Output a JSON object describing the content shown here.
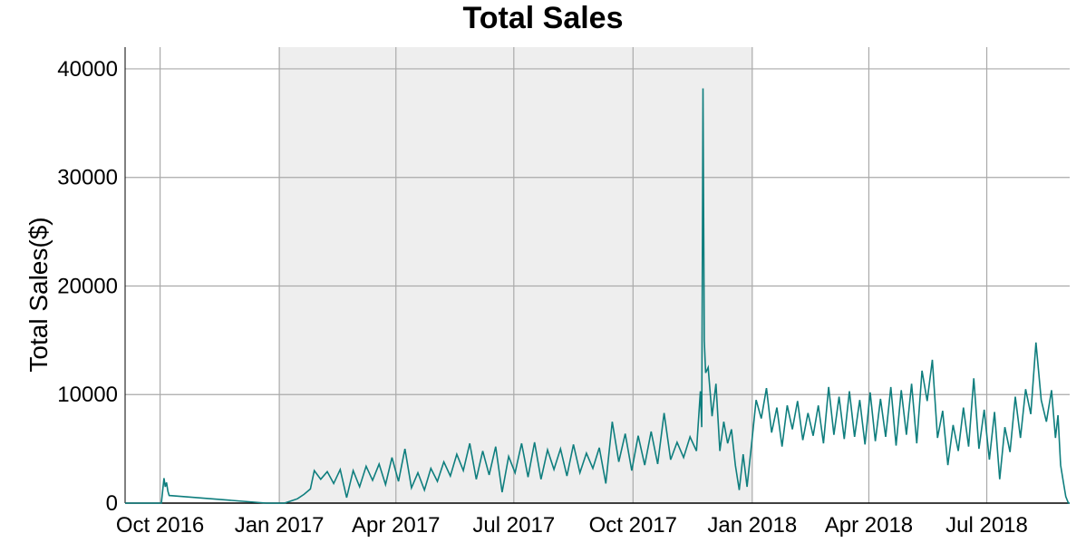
{
  "chart_data": {
    "type": "line",
    "title": "Total Sales",
    "xlabel": "",
    "ylabel": "Total Sales($)",
    "xlim": [
      "2016-09-04",
      "2018-09-03"
    ],
    "ylim": [
      0,
      42000
    ],
    "grid": true,
    "shaded_region": {
      "start": "2017-01-01",
      "end": "2018-01-01",
      "color": "#eeeeee"
    },
    "line_color": "#0f7e7e",
    "x_ticks": [
      {
        "label": "Oct 2016",
        "date": "2016-10-01"
      },
      {
        "label": "Jan 2017",
        "date": "2017-01-01"
      },
      {
        "label": "Apr 2017",
        "date": "2017-04-01"
      },
      {
        "label": "Jul 2017",
        "date": "2017-07-01"
      },
      {
        "label": "Oct 2017",
        "date": "2017-10-01"
      },
      {
        "label": "Jan 2018",
        "date": "2018-01-01"
      },
      {
        "label": "Apr 2018",
        "date": "2018-04-01"
      },
      {
        "label": "Jul 2018",
        "date": "2018-07-01"
      }
    ],
    "y_ticks": [
      {
        "label": "0",
        "value": 0
      },
      {
        "label": "10000",
        "value": 10000
      },
      {
        "label": "20000",
        "value": 20000
      },
      {
        "label": "30000",
        "value": 30000
      },
      {
        "label": "40000",
        "value": 40000
      }
    ],
    "series": [
      {
        "points": [
          [
            "2016-09-04",
            0
          ],
          [
            "2016-10-02",
            0
          ],
          [
            "2016-10-04",
            2300
          ],
          [
            "2016-10-05",
            1500
          ],
          [
            "2016-10-06",
            1900
          ],
          [
            "2016-10-07",
            1100
          ],
          [
            "2016-10-08",
            700
          ],
          [
            "2016-12-22",
            0
          ],
          [
            "2017-01-05",
            0
          ],
          [
            "2017-01-10",
            200
          ],
          [
            "2017-01-15",
            400
          ],
          [
            "2017-01-20",
            800
          ],
          [
            "2017-01-25",
            1300
          ],
          [
            "2017-01-28",
            3000
          ],
          [
            "2017-02-02",
            2200
          ],
          [
            "2017-02-07",
            2900
          ],
          [
            "2017-02-12",
            1800
          ],
          [
            "2017-02-17",
            3100
          ],
          [
            "2017-02-22",
            500
          ],
          [
            "2017-02-27",
            3000
          ],
          [
            "2017-03-04",
            1500
          ],
          [
            "2017-03-09",
            3400
          ],
          [
            "2017-03-14",
            2100
          ],
          [
            "2017-03-19",
            3600
          ],
          [
            "2017-03-24",
            1700
          ],
          [
            "2017-03-29",
            4200
          ],
          [
            "2017-04-03",
            2000
          ],
          [
            "2017-04-08",
            5000
          ],
          [
            "2017-04-13",
            1400
          ],
          [
            "2017-04-18",
            2800
          ],
          [
            "2017-04-23",
            1200
          ],
          [
            "2017-04-28",
            3200
          ],
          [
            "2017-05-03",
            2000
          ],
          [
            "2017-05-08",
            3800
          ],
          [
            "2017-05-13",
            2500
          ],
          [
            "2017-05-18",
            4500
          ],
          [
            "2017-05-23",
            3000
          ],
          [
            "2017-05-28",
            5500
          ],
          [
            "2017-06-02",
            2200
          ],
          [
            "2017-06-07",
            4800
          ],
          [
            "2017-06-12",
            2600
          ],
          [
            "2017-06-17",
            5200
          ],
          [
            "2017-06-22",
            1000
          ],
          [
            "2017-06-27",
            4300
          ],
          [
            "2017-07-02",
            2800
          ],
          [
            "2017-07-07",
            5500
          ],
          [
            "2017-07-12",
            2400
          ],
          [
            "2017-07-17",
            5600
          ],
          [
            "2017-07-22",
            2200
          ],
          [
            "2017-07-27",
            4900
          ],
          [
            "2017-08-01",
            3100
          ],
          [
            "2017-08-06",
            5000
          ],
          [
            "2017-08-11",
            2500
          ],
          [
            "2017-08-16",
            5400
          ],
          [
            "2017-08-21",
            2800
          ],
          [
            "2017-08-26",
            4600
          ],
          [
            "2017-08-31",
            3200
          ],
          [
            "2017-09-05",
            5100
          ],
          [
            "2017-09-10",
            1800
          ],
          [
            "2017-09-15",
            7500
          ],
          [
            "2017-09-20",
            3800
          ],
          [
            "2017-09-25",
            6400
          ],
          [
            "2017-09-30",
            3000
          ],
          [
            "2017-10-05",
            6200
          ],
          [
            "2017-10-10",
            3500
          ],
          [
            "2017-10-15",
            6600
          ],
          [
            "2017-10-20",
            3600
          ],
          [
            "2017-10-25",
            8300
          ],
          [
            "2017-10-30",
            4000
          ],
          [
            "2017-11-04",
            5600
          ],
          [
            "2017-11-09",
            4200
          ],
          [
            "2017-11-14",
            6100
          ],
          [
            "2017-11-19",
            4800
          ],
          [
            "2017-11-22",
            10300
          ],
          [
            "2017-11-23",
            7000
          ],
          [
            "2017-11-24",
            38200
          ],
          [
            "2017-11-25",
            15000
          ],
          [
            "2017-11-26",
            12000
          ],
          [
            "2017-11-28",
            12500
          ],
          [
            "2017-12-01",
            8000
          ],
          [
            "2017-12-04",
            11000
          ],
          [
            "2017-12-07",
            4800
          ],
          [
            "2017-12-10",
            7500
          ],
          [
            "2017-12-13",
            5500
          ],
          [
            "2017-12-16",
            6800
          ],
          [
            "2017-12-19",
            3500
          ],
          [
            "2017-12-22",
            1200
          ],
          [
            "2017-12-25",
            4500
          ],
          [
            "2017-12-28",
            1500
          ],
          [
            "2018-01-01",
            6000
          ],
          [
            "2018-01-04",
            9500
          ],
          [
            "2018-01-08",
            7800
          ],
          [
            "2018-01-12",
            10600
          ],
          [
            "2018-01-16",
            6500
          ],
          [
            "2018-01-20",
            8800
          ],
          [
            "2018-01-24",
            5200
          ],
          [
            "2018-01-28",
            9000
          ],
          [
            "2018-02-01",
            6800
          ],
          [
            "2018-02-05",
            9400
          ],
          [
            "2018-02-09",
            5800
          ],
          [
            "2018-02-13",
            8300
          ],
          [
            "2018-02-17",
            6200
          ],
          [
            "2018-02-21",
            9000
          ],
          [
            "2018-02-25",
            5500
          ],
          [
            "2018-03-01",
            10700
          ],
          [
            "2018-03-05",
            6300
          ],
          [
            "2018-03-09",
            9800
          ],
          [
            "2018-03-13",
            5900
          ],
          [
            "2018-03-17",
            10300
          ],
          [
            "2018-03-21",
            6100
          ],
          [
            "2018-03-25",
            9500
          ],
          [
            "2018-03-29",
            5400
          ],
          [
            "2018-04-02",
            10200
          ],
          [
            "2018-04-06",
            5700
          ],
          [
            "2018-04-10",
            9600
          ],
          [
            "2018-04-14",
            6100
          ],
          [
            "2018-04-18",
            10700
          ],
          [
            "2018-04-22",
            5300
          ],
          [
            "2018-04-26",
            10400
          ],
          [
            "2018-04-30",
            6300
          ],
          [
            "2018-05-04",
            11000
          ],
          [
            "2018-05-08",
            5500
          ],
          [
            "2018-05-12",
            12200
          ],
          [
            "2018-05-16",
            9400
          ],
          [
            "2018-05-20",
            13200
          ],
          [
            "2018-05-24",
            6000
          ],
          [
            "2018-05-28",
            8500
          ],
          [
            "2018-06-01",
            3500
          ],
          [
            "2018-06-05",
            7200
          ],
          [
            "2018-06-09",
            4800
          ],
          [
            "2018-06-13",
            8800
          ],
          [
            "2018-06-17",
            5200
          ],
          [
            "2018-06-21",
            11500
          ],
          [
            "2018-06-25",
            5000
          ],
          [
            "2018-06-29",
            8600
          ],
          [
            "2018-07-03",
            4000
          ],
          [
            "2018-07-07",
            8400
          ],
          [
            "2018-07-11",
            2200
          ],
          [
            "2018-07-15",
            7000
          ],
          [
            "2018-07-19",
            4700
          ],
          [
            "2018-07-23",
            9800
          ],
          [
            "2018-07-27",
            6000
          ],
          [
            "2018-07-31",
            10500
          ],
          [
            "2018-08-04",
            8200
          ],
          [
            "2018-08-08",
            14800
          ],
          [
            "2018-08-12",
            9500
          ],
          [
            "2018-08-16",
            7500
          ],
          [
            "2018-08-20",
            10400
          ],
          [
            "2018-08-23",
            6000
          ],
          [
            "2018-08-25",
            8100
          ],
          [
            "2018-08-27",
            3500
          ],
          [
            "2018-08-29",
            2000
          ],
          [
            "2018-08-31",
            600
          ],
          [
            "2018-09-02",
            0
          ],
          [
            "2018-09-03",
            0
          ]
        ]
      }
    ]
  }
}
